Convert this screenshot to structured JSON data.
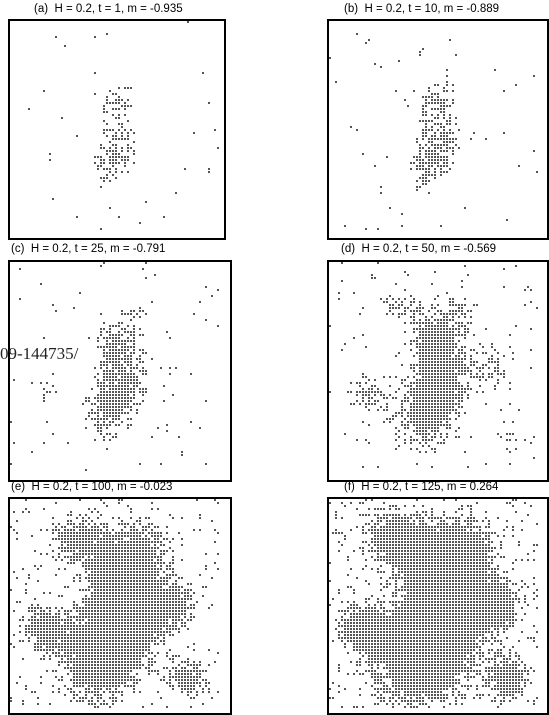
{
  "figure": {
    "panels": [
      {
        "label": "(a)",
        "caption": "H = 0.2, t = 1, m = -0.935",
        "H": 0.2,
        "t": 1,
        "m": -0.935
      },
      {
        "label": "(b)",
        "caption": "H = 0.2, t = 10, m = -0.889",
        "H": 0.2,
        "t": 10,
        "m": -0.889
      },
      {
        "label": "(c)",
        "caption": "H = 0.2, t = 25, m = -0.791",
        "H": 0.2,
        "t": 25,
        "m": -0.791
      },
      {
        "label": "(d)",
        "caption": "H = 0.2, t = 50, m = -0.569",
        "H": 0.2,
        "t": 50,
        "m": -0.569
      },
      {
        "label": "(e)",
        "caption": "H = 0.2, t = 100, m = -0.023",
        "H": 0.2,
        "t": 100,
        "m": -0.023
      },
      {
        "label": "(f)",
        "caption": "H = 0.2, t = 125, m = 0.264",
        "H": 0.2,
        "t": 125,
        "m": 0.264
      }
    ]
  },
  "watermark": {
    "text": "09-144735/"
  },
  "colors": {
    "spin_up": "#555555",
    "background": "#ffffff",
    "frame": "#000000"
  }
}
